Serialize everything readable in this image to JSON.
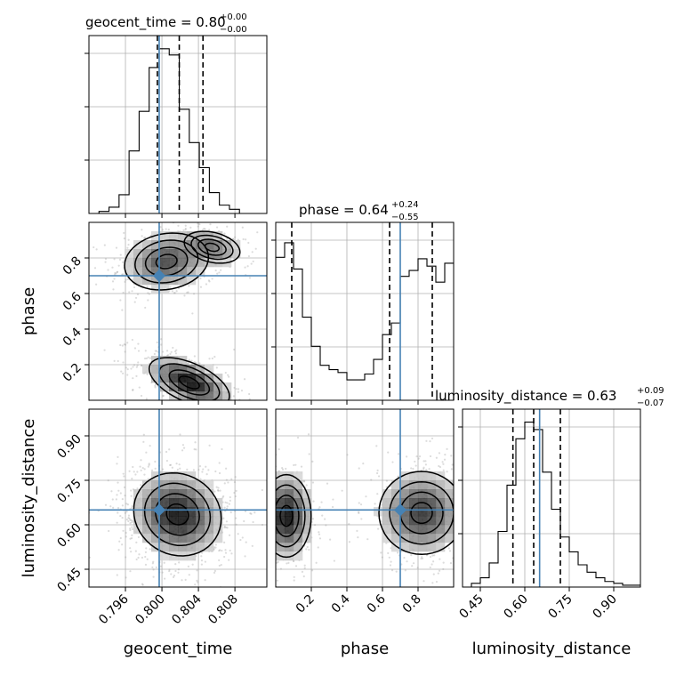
{
  "chart_data": {
    "type": "corner",
    "parameters": [
      "geocent_time",
      "phase",
      "luminosity_distance"
    ],
    "truths": {
      "geocent_time": 0.7997,
      "phase": 0.7,
      "luminosity_distance": 0.65
    },
    "quantile_lines": {
      "geocent_time": [
        0.7995,
        0.8019,
        0.8045
      ],
      "phase": [
        0.09,
        0.64,
        0.88
      ],
      "luminosity_distance": [
        0.56,
        0.63,
        0.72
      ]
    },
    "titles": {
      "geocent_time": {
        "label": "geocent_time = 0.80",
        "plus": "+0.00",
        "minus": "−0.00"
      },
      "phase": {
        "label": "phase = 0.64",
        "plus": "+0.24",
        "minus": "−0.55"
      },
      "luminosity_distance": {
        "label": "luminosity_distance = 0.63",
        "plus": "+0.09",
        "minus": "−0.07"
      }
    },
    "axes": {
      "geocent_time": {
        "range": [
          0.792,
          0.8115
        ],
        "ticks": [
          0.796,
          0.8,
          0.804,
          0.808
        ],
        "tick_labels": [
          "0.796",
          "0.800",
          "0.804",
          "0.808"
        ]
      },
      "phase": {
        "range": [
          0.0,
          1.0
        ],
        "ticks": [
          0.2,
          0.4,
          0.6,
          0.8
        ],
        "tick_labels": [
          "0.2",
          "0.4",
          "0.6",
          "0.8"
        ]
      },
      "luminosity_distance": {
        "range": [
          0.39,
          0.99
        ],
        "ticks": [
          0.45,
          0.6,
          0.75,
          0.9
        ],
        "tick_labels": [
          "0.45",
          "0.60",
          "0.75",
          "0.90"
        ]
      }
    },
    "histograms": {
      "geocent_time": {
        "edges": [
          0.792,
          0.7931,
          0.7942,
          0.7953,
          0.7964,
          0.7975,
          0.7986,
          0.7997,
          0.8008,
          0.8019,
          0.803,
          0.8041,
          0.8052,
          0.8063,
          0.8074,
          0.8085,
          0.8096,
          0.8107,
          0.8115
        ],
        "counts": [
          0,
          1,
          3,
          9,
          30,
          49,
          70,
          79,
          76,
          50,
          34,
          22,
          10,
          4,
          2,
          0,
          0,
          0
        ]
      },
      "phase": {
        "edges": [
          0.0,
          0.05,
          0.1,
          0.15,
          0.2,
          0.25,
          0.3,
          0.35,
          0.4,
          0.45,
          0.5,
          0.55,
          0.6,
          0.65,
          0.7,
          0.75,
          0.8,
          0.85,
          0.9,
          0.95,
          1.0
        ],
        "counts": [
          98,
          108,
          90,
          57,
          37,
          24,
          21,
          19,
          14,
          14,
          18,
          28,
          45,
          53,
          85,
          89,
          97,
          92,
          81,
          94
        ],
        "ylim": [
          0,
          122
        ]
      },
      "luminosity_distance": {
        "edges": [
          0.39,
          0.42,
          0.45,
          0.48,
          0.51,
          0.54,
          0.57,
          0.6,
          0.63,
          0.66,
          0.69,
          0.72,
          0.75,
          0.78,
          0.81,
          0.84,
          0.87,
          0.9,
          0.93,
          0.96,
          0.99
        ],
        "counts": [
          0,
          2,
          5,
          13,
          30,
          55,
          80,
          89,
          85,
          62,
          42,
          27,
          19,
          12,
          8,
          5,
          3,
          2,
          1,
          1
        ],
        "ylim": [
          0,
          96
        ]
      }
    },
    "scatter_2d": {
      "phase_vs_geocent_time": {
        "modes": [
          {
            "x": 0.8005,
            "y": 0.78,
            "sx": 0.0023,
            "sy": 0.08,
            "rho": 0.15,
            "n": 420
          },
          {
            "x": 0.8055,
            "y": 0.86,
            "sx": 0.0017,
            "sy": 0.05,
            "rho": -0.3,
            "n": 140
          },
          {
            "x": 0.803,
            "y": 0.1,
            "sx": 0.0022,
            "sy": 0.07,
            "rho": -0.55,
            "n": 520
          }
        ]
      },
      "luminosity_distance_vs_geocent_time": {
        "modes": [
          {
            "x": 0.8017,
            "y": 0.635,
            "sx": 0.0024,
            "sy": 0.07,
            "rho": -0.1,
            "n": 900
          }
        ]
      },
      "luminosity_distance_vs_phase": {
        "modes": [
          {
            "x": 0.06,
            "y": 0.63,
            "sx": 0.07,
            "sy": 0.07,
            "rho": 0.0,
            "n": 380
          },
          {
            "x": 0.82,
            "y": 0.64,
            "sx": 0.12,
            "sy": 0.07,
            "rho": 0.0,
            "n": 520
          }
        ]
      }
    }
  },
  "style": {
    "truth_color": "#4682b4",
    "contour_color": "#000000",
    "grid_color": "#b0b0b0"
  }
}
